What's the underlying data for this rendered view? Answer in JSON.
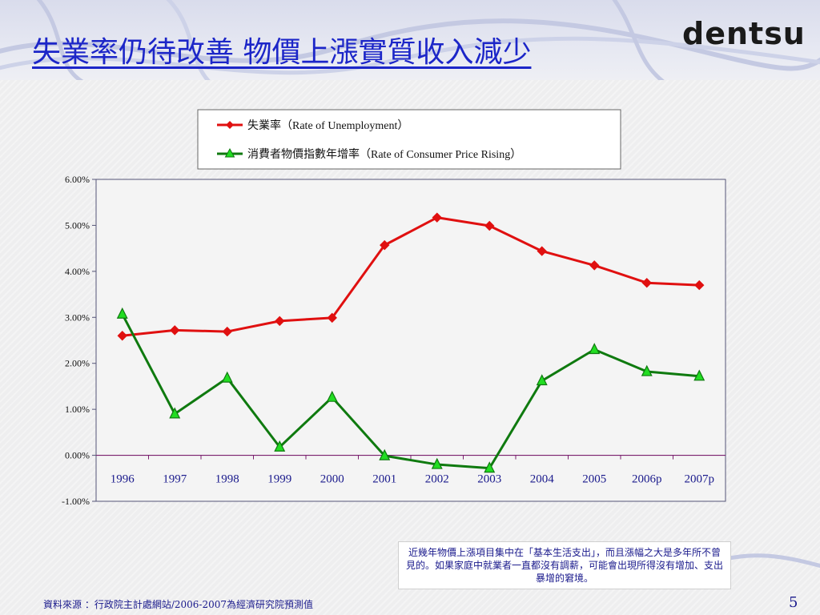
{
  "slide": {
    "title": "失業率仍待改善  物價上漲實質收入減少",
    "logo_text": "dentsu",
    "note": "近幾年物價上漲項目集中在「基本生活支出」，而且漲幅之大是多年所不曾見的。如果家庭中就業者一直都沒有調薪，可能會出現所得沒有增加、支出暴增的窘境。",
    "source": "資料來源 ：行政院主計處網站/2006-2007為經濟研究院預測值",
    "page_number": "5"
  },
  "colors": {
    "title": "#1c26c8",
    "unemployment": "#e01010",
    "cpi": "#0f7a0f",
    "zero_line": "#7a1f6e",
    "plot_border": "#555577",
    "axis_text": "#1a1a8c"
  },
  "chart_data": {
    "type": "line",
    "categories": [
      "1996",
      "1997",
      "1998",
      "1999",
      "2000",
      "2001",
      "2002",
      "2003",
      "2004",
      "2005",
      "2006p",
      "2007p"
    ],
    "series": [
      {
        "name": "失業率（Rate of Unemployment）",
        "marker": "diamond",
        "color": "#e01010",
        "values": [
          2.6,
          2.72,
          2.69,
          2.92,
          2.99,
          4.57,
          5.17,
          4.99,
          4.44,
          4.13,
          3.75,
          3.7
        ]
      },
      {
        "name": "消費者物價指數年增率（Rate of Consumer Price Rising）",
        "marker": "triangle",
        "color": "#0f7a0f",
        "values": [
          3.07,
          0.9,
          1.68,
          0.18,
          1.26,
          -0.01,
          -0.2,
          -0.28,
          1.62,
          2.3,
          1.82,
          1.72
        ]
      }
    ],
    "yticks": [
      "6.00%",
      "5.00%",
      "4.00%",
      "3.00%",
      "2.00%",
      "1.00%",
      "0.00%",
      "-1.00%"
    ],
    "ylim": [
      -1.0,
      6.0
    ],
    "grid": false,
    "legend_position": "top-center"
  }
}
